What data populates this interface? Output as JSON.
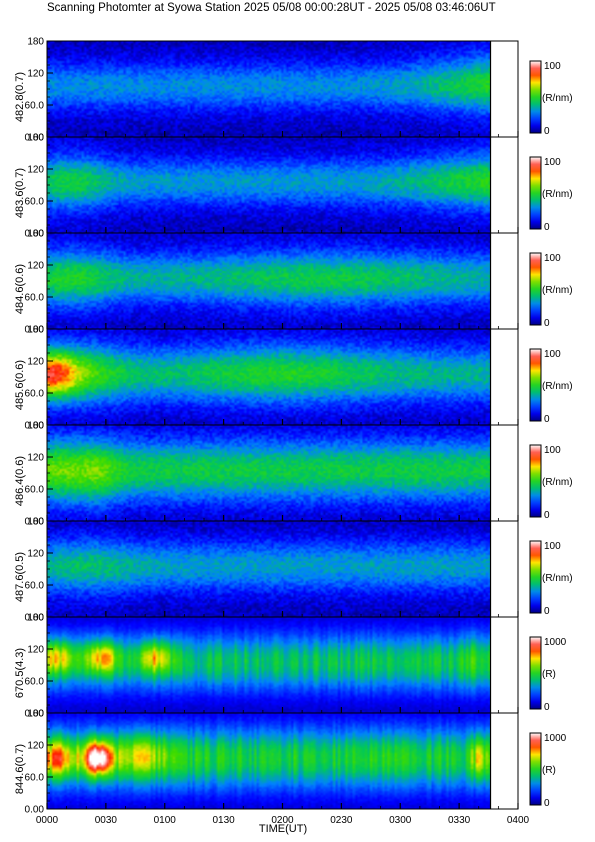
{
  "chart_data": {
    "type": "heatmap",
    "title": "Scanning Photomter at Syowa Station 2025 05/08 00:00:28UT - 2025 05/08 03:46:06UT",
    "xlabel": "TIME(UT)",
    "x_ticks": [
      "0000",
      "0030",
      "0100",
      "0130",
      "0200",
      "0230",
      "0300",
      "0330",
      "0400"
    ],
    "x_range_minutes": [
      0,
      240
    ],
    "data_end_minutes": 226,
    "y_range": [
      0,
      180
    ],
    "y_ticks": [
      "0.00",
      "60.0",
      "120",
      "180"
    ],
    "panels": [
      {
        "ylabel": "482.8(0.7)",
        "colorbar_max": "100",
        "colorbar_min": "0",
        "unit": "(R/nm)",
        "base": 0.25,
        "band_width": 45,
        "features": [
          {
            "t": 240,
            "amp": 0.22,
            "w": 45,
            "zc": 105,
            "zw": 70
          }
        ]
      },
      {
        "ylabel": "483.6(0.7)",
        "colorbar_max": "100",
        "colorbar_min": "0",
        "unit": "(R/nm)",
        "base": 0.27,
        "band_width": 45,
        "features": [
          {
            "t": 12,
            "amp": 0.14,
            "w": 20,
            "zc": 95,
            "zw": 70
          },
          {
            "t": 240,
            "amp": 0.2,
            "w": 50,
            "zc": 100,
            "zw": 70
          }
        ]
      },
      {
        "ylabel": "484.6(0.6)",
        "colorbar_max": "100",
        "colorbar_min": "0",
        "unit": "(R/nm)",
        "base": 0.3,
        "band_width": 48,
        "features": [
          {
            "t": 12,
            "amp": 0.14,
            "w": 22,
            "zc": 95,
            "zw": 70
          },
          {
            "t": 140,
            "amp": 0.1,
            "w": 60,
            "zc": 95,
            "zw": 70
          }
        ]
      },
      {
        "ylabel": "485.6(0.6)",
        "colorbar_max": "100",
        "colorbar_min": "0",
        "unit": "(R/nm)",
        "base": 0.32,
        "band_width": 52,
        "features": [
          {
            "t": 2,
            "amp": 0.45,
            "w": 14,
            "zc": 95,
            "zw": 45
          },
          {
            "t": 22,
            "amp": 0.14,
            "w": 20,
            "zc": 100,
            "zw": 70
          },
          {
            "t": 120,
            "amp": 0.12,
            "w": 50,
            "zc": 100,
            "zw": 70
          }
        ]
      },
      {
        "ylabel": "486.4(0.6)",
        "colorbar_max": "100",
        "colorbar_min": "0",
        "unit": "(R/nm)",
        "base": 0.4,
        "band_width": 58,
        "features": [
          {
            "t": 5,
            "amp": 0.12,
            "w": 14,
            "zc": 90,
            "zw": 70
          },
          {
            "t": 25,
            "amp": 0.13,
            "w": 12,
            "zc": 90,
            "zw": 70
          }
        ]
      },
      {
        "ylabel": "487.6(0.5)",
        "colorbar_max": "100",
        "colorbar_min": "0",
        "unit": "(R/nm)",
        "base": 0.28,
        "band_width": 48,
        "features": [
          {
            "t": 20,
            "amp": 0.08,
            "w": 25,
            "zc": 95,
            "zw": 70
          }
        ]
      },
      {
        "ylabel": "670.5(4.3)",
        "colorbar_max": "1000",
        "colorbar_min": "0",
        "unit": "(R)",
        "base": 0.38,
        "band_width": 55,
        "features": [
          {
            "t": 5,
            "amp": 0.3,
            "w": 9,
            "zc": 105,
            "zw": 30
          },
          {
            "t": 28,
            "amp": 0.34,
            "w": 9,
            "zc": 105,
            "zw": 30
          },
          {
            "t": 55,
            "amp": 0.3,
            "w": 9,
            "zc": 105,
            "zw": 30
          },
          {
            "t": 218,
            "amp": 0.1,
            "w": 6,
            "zc": 100,
            "zw": 60
          }
        ]
      },
      {
        "ylabel": "844.6(0.7)",
        "colorbar_max": "1000",
        "colorbar_min": "0",
        "unit": "(R)",
        "base": 0.42,
        "band_width": 60,
        "features": [
          {
            "t": 5,
            "amp": 0.35,
            "w": 10,
            "zc": 95,
            "zw": 35
          },
          {
            "t": 26,
            "amp": 0.62,
            "w": 7,
            "zc": 95,
            "zw": 32
          },
          {
            "t": 48,
            "amp": 0.2,
            "w": 14,
            "zc": 100,
            "zw": 40
          },
          {
            "t": 220,
            "amp": 0.22,
            "w": 4,
            "zc": 95,
            "zw": 40
          }
        ]
      }
    ]
  }
}
